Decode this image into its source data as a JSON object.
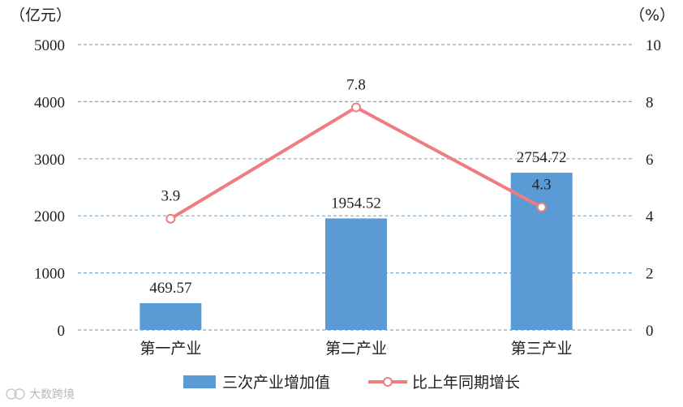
{
  "chart_data": {
    "type": "bar",
    "categories": [
      "第一产业",
      "第二产业",
      "第三产业"
    ],
    "series": [
      {
        "name": "三次产业增加值",
        "type": "bar",
        "axis": "left",
        "values": [
          469.57,
          1954.52,
          2754.72
        ],
        "color": "#5b9bd5"
      },
      {
        "name": "比上年同期增长",
        "type": "line",
        "axis": "right",
        "values": [
          3.9,
          7.8,
          4.3
        ],
        "color": "#f07c82"
      }
    ],
    "y_left": {
      "unit_label": "（亿元）",
      "ylim": [
        0,
        5000
      ],
      "ticks": [
        "0",
        "1000",
        "2000",
        "3000",
        "4000",
        "5000"
      ]
    },
    "y_right": {
      "unit_label": "（%）",
      "ylim": [
        0,
        10
      ],
      "ticks": [
        "0",
        "2",
        "4",
        "6",
        "8",
        "10"
      ]
    },
    "bar_labels": [
      "469.57",
      "1954.52",
      "2754.72"
    ],
    "line_labels": [
      "3.9",
      "7.8",
      "4.3"
    ],
    "grid": true,
    "grid_style": "dashed",
    "legend_position": "bottom"
  },
  "watermark": "大数跨境"
}
